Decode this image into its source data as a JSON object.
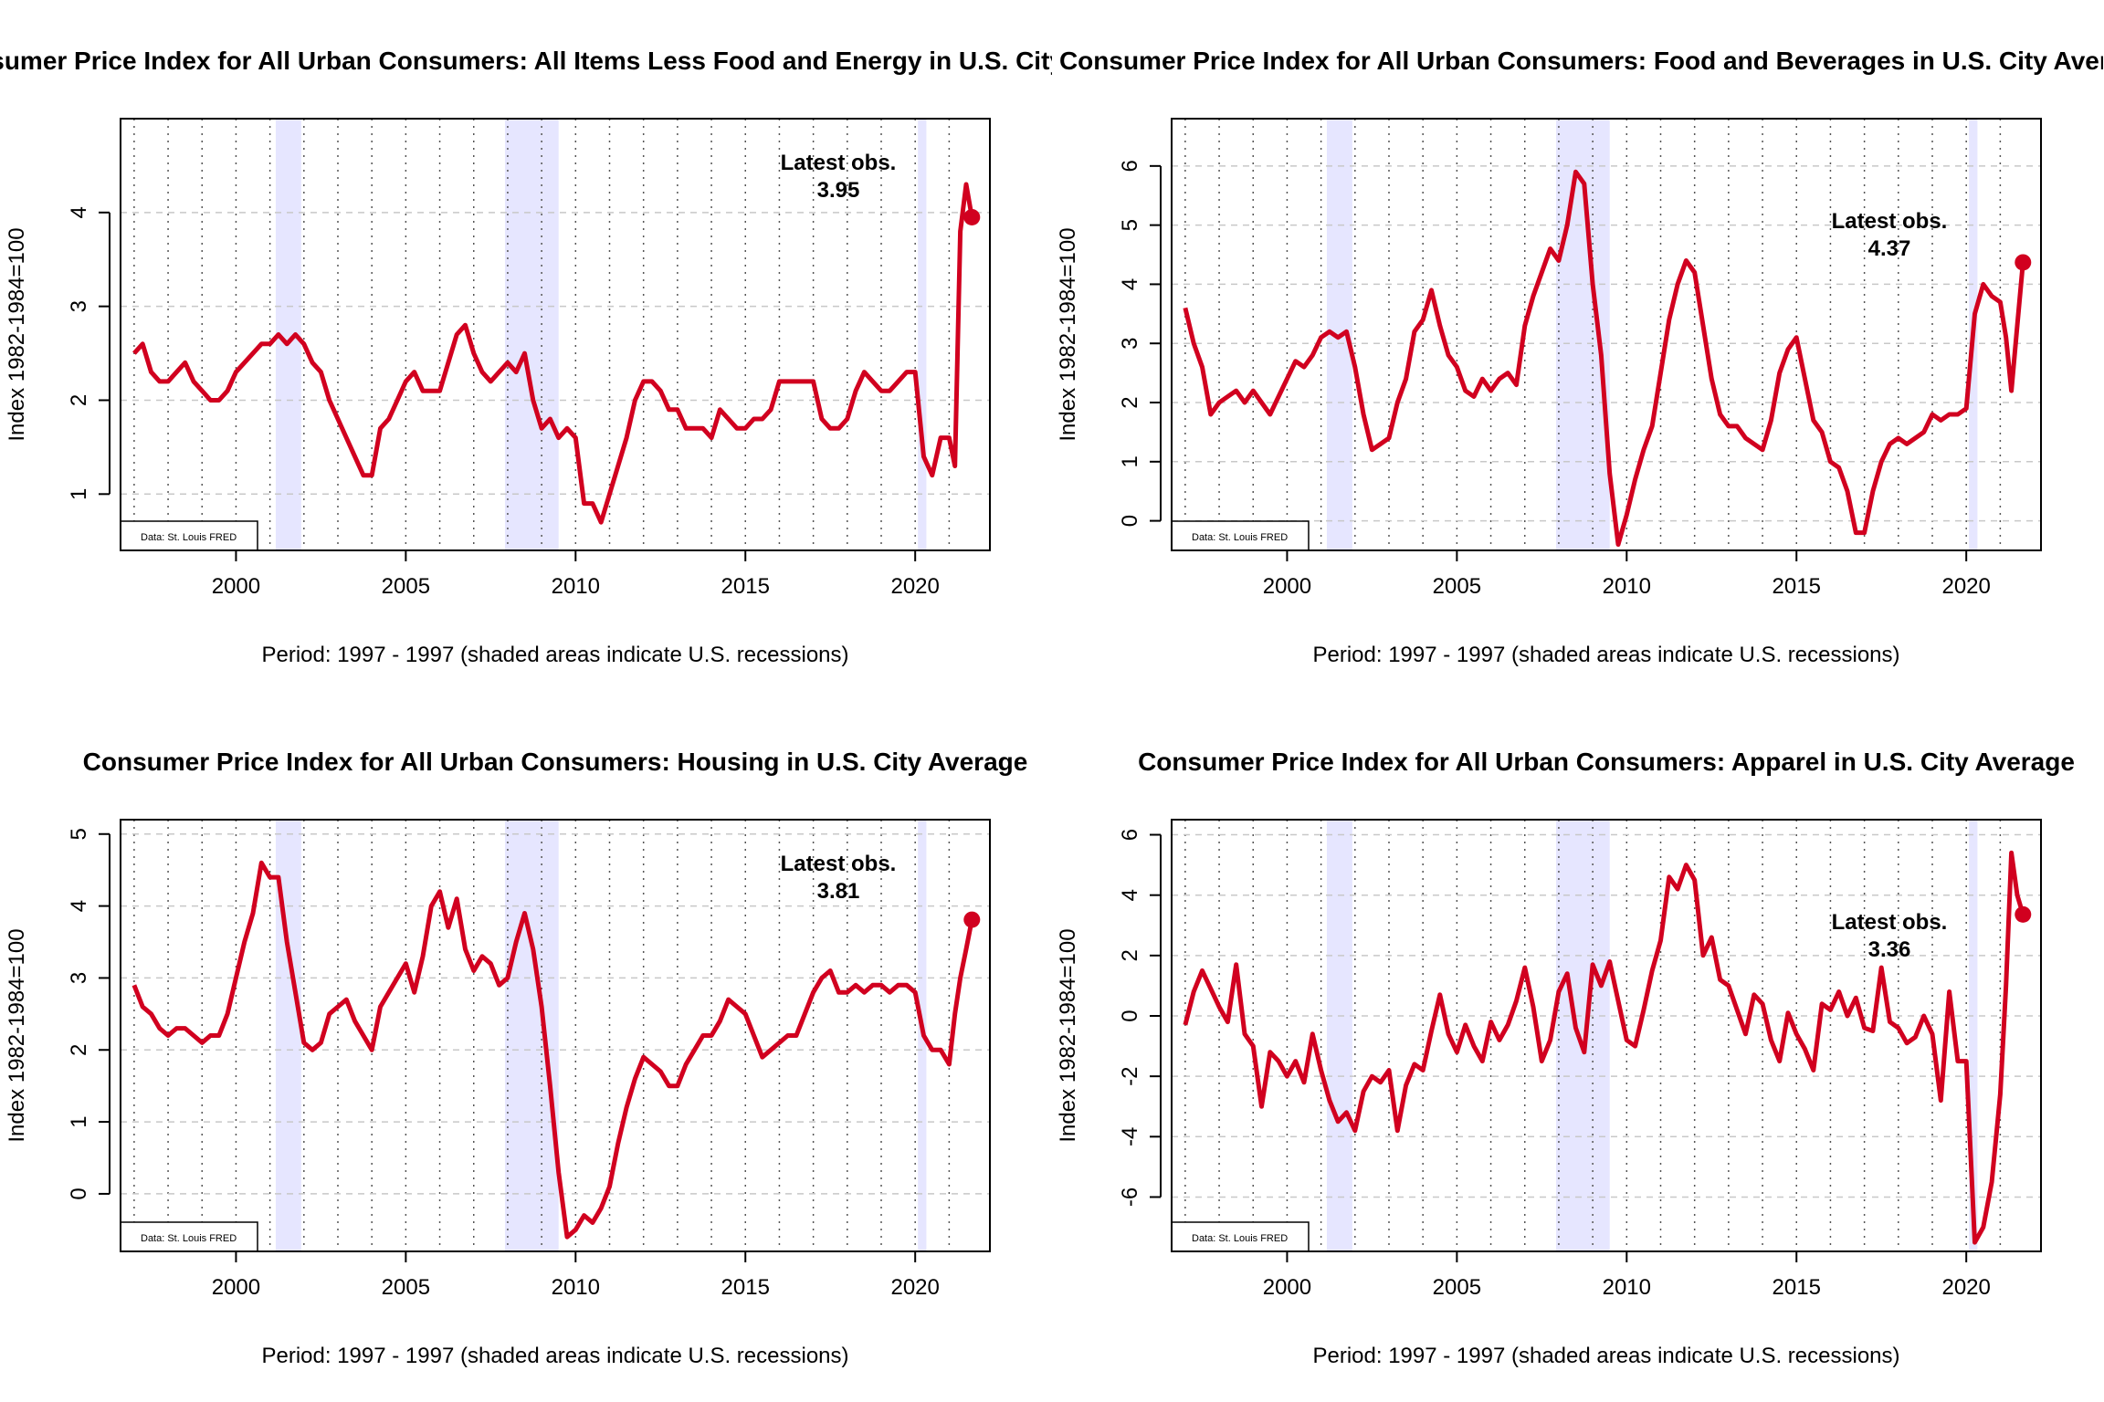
{
  "shared": {
    "ylabel": "Index 1982-1984=100",
    "xlabel": "Period: 1997 - 1997 (shaded areas indicate U.S. recessions)",
    "latest_label": "Latest obs.",
    "source_note": "Data: St. Louis FRED",
    "line_color": "#d1001f",
    "recession_color": "#e6e6ff",
    "x_ticks": [
      "2000",
      "2005",
      "2010",
      "2015",
      "2020"
    ],
    "xlim": [
      1996.6,
      2022.2
    ],
    "recessions": [
      [
        2001.17,
        2001.92
      ],
      [
        2007.92,
        2009.5
      ],
      [
        2020.08,
        2020.33
      ]
    ]
  },
  "chart_data": [
    {
      "type": "line",
      "title": "Consumer Price Index for All Urban Consumers: All Items Less Food and Energy in U.S. City Average",
      "ylim": [
        0.4,
        5.0
      ],
      "y_ticks": [
        "1",
        "2",
        "3",
        "4"
      ],
      "latest_value": "3.95",
      "series": [
        {
          "x": [
            1997.0,
            1997.25,
            1997.5,
            1997.75,
            1998.0,
            1998.25,
            1998.5,
            1998.75,
            1999.0,
            1999.25,
            1999.5,
            1999.75,
            2000.0,
            2000.25,
            2000.5,
            2000.75,
            2001.0,
            2001.25,
            2001.5,
            2001.75,
            2002.0,
            2002.25,
            2002.5,
            2002.75,
            2003.0,
            2003.25,
            2003.5,
            2003.75,
            2004.0,
            2004.25,
            2004.5,
            2004.75,
            2005.0,
            2005.25,
            2005.5,
            2005.75,
            2006.0,
            2006.25,
            2006.5,
            2006.75,
            2007.0,
            2007.25,
            2007.5,
            2007.75,
            2008.0,
            2008.25,
            2008.5,
            2008.75,
            2009.0,
            2009.25,
            2009.5,
            2009.75,
            2010.0,
            2010.25,
            2010.5,
            2010.75,
            2011.0,
            2011.25,
            2011.5,
            2011.75,
            2012.0,
            2012.25,
            2012.5,
            2012.75,
            2013.0,
            2013.25,
            2013.5,
            2013.75,
            2014.0,
            2014.25,
            2014.5,
            2014.75,
            2015.0,
            2015.25,
            2015.5,
            2015.75,
            2016.0,
            2016.25,
            2016.5,
            2016.75,
            2017.0,
            2017.25,
            2017.5,
            2017.75,
            2018.0,
            2018.25,
            2018.5,
            2018.75,
            2019.0,
            2019.25,
            2019.5,
            2019.75,
            2020.0,
            2020.25,
            2020.5,
            2020.75,
            2021.0,
            2021.17,
            2021.33,
            2021.5,
            2021.67
          ],
          "y": [
            2.5,
            2.6,
            2.3,
            2.2,
            2.2,
            2.3,
            2.4,
            2.2,
            2.1,
            2.0,
            2.0,
            2.1,
            2.3,
            2.4,
            2.5,
            2.6,
            2.6,
            2.7,
            2.6,
            2.7,
            2.6,
            2.4,
            2.3,
            2.0,
            1.8,
            1.6,
            1.4,
            1.2,
            1.2,
            1.7,
            1.8,
            2.0,
            2.2,
            2.3,
            2.1,
            2.1,
            2.1,
            2.4,
            2.7,
            2.8,
            2.5,
            2.3,
            2.2,
            2.3,
            2.4,
            2.3,
            2.5,
            2.0,
            1.7,
            1.8,
            1.6,
            1.7,
            1.6,
            0.9,
            0.9,
            0.7,
            1.0,
            1.3,
            1.6,
            2.0,
            2.2,
            2.2,
            2.1,
            1.9,
            1.9,
            1.7,
            1.7,
            1.7,
            1.6,
            1.9,
            1.8,
            1.7,
            1.7,
            1.8,
            1.8,
            1.9,
            2.2,
            2.2,
            2.2,
            2.2,
            2.2,
            1.8,
            1.7,
            1.7,
            1.8,
            2.1,
            2.3,
            2.2,
            2.1,
            2.1,
            2.2,
            2.3,
            2.3,
            1.4,
            1.2,
            1.6,
            1.6,
            1.3,
            3.8,
            4.3,
            3.95
          ]
        }
      ]
    },
    {
      "type": "line",
      "title": "Consumer Price Index for All Urban Consumers: Food and Beverages in U.S. City Average",
      "ylim": [
        -0.5,
        6.8
      ],
      "y_ticks": [
        "0",
        "1",
        "2",
        "3",
        "4",
        "5",
        "6"
      ],
      "latest_value": "4.37",
      "series": [
        {
          "x": [
            1997.0,
            1997.25,
            1997.5,
            1997.75,
            1998.0,
            1998.25,
            1998.5,
            1998.75,
            1999.0,
            1999.25,
            1999.5,
            1999.75,
            2000.0,
            2000.25,
            2000.5,
            2000.75,
            2001.0,
            2001.25,
            2001.5,
            2001.75,
            2002.0,
            2002.25,
            2002.5,
            2002.75,
            2003.0,
            2003.25,
            2003.5,
            2003.75,
            2004.0,
            2004.25,
            2004.5,
            2004.75,
            2005.0,
            2005.25,
            2005.5,
            2005.75,
            2006.0,
            2006.25,
            2006.5,
            2006.75,
            2007.0,
            2007.25,
            2007.5,
            2007.75,
            2008.0,
            2008.25,
            2008.5,
            2008.75,
            2009.0,
            2009.25,
            2009.5,
            2009.75,
            2010.0,
            2010.25,
            2010.5,
            2010.75,
            2011.0,
            2011.25,
            2011.5,
            2011.75,
            2012.0,
            2012.25,
            2012.5,
            2012.75,
            2013.0,
            2013.25,
            2013.5,
            2013.75,
            2014.0,
            2014.25,
            2014.5,
            2014.75,
            2015.0,
            2015.25,
            2015.5,
            2015.75,
            2016.0,
            2016.25,
            2016.5,
            2016.75,
            2017.0,
            2017.25,
            2017.5,
            2017.75,
            2018.0,
            2018.25,
            2018.5,
            2018.75,
            2019.0,
            2019.25,
            2019.5,
            2019.75,
            2020.0,
            2020.25,
            2020.5,
            2020.75,
            2021.0,
            2021.17,
            2021.33,
            2021.5,
            2021.67
          ],
          "y": [
            3.6,
            3.0,
            2.6,
            1.8,
            2.0,
            2.1,
            2.2,
            2.0,
            2.2,
            2.0,
            1.8,
            2.1,
            2.4,
            2.7,
            2.6,
            2.8,
            3.1,
            3.2,
            3.1,
            3.2,
            2.6,
            1.8,
            1.2,
            1.3,
            1.4,
            2.0,
            2.4,
            3.2,
            3.4,
            3.9,
            3.3,
            2.8,
            2.6,
            2.2,
            2.1,
            2.4,
            2.2,
            2.4,
            2.5,
            2.3,
            3.3,
            3.8,
            4.2,
            4.6,
            4.4,
            5.0,
            5.9,
            5.7,
            4.0,
            2.8,
            0.8,
            -0.4,
            0.1,
            0.7,
            1.2,
            1.6,
            2.5,
            3.4,
            4.0,
            4.4,
            4.2,
            3.3,
            2.4,
            1.8,
            1.6,
            1.6,
            1.4,
            1.3,
            1.2,
            1.7,
            2.5,
            2.9,
            3.1,
            2.4,
            1.7,
            1.5,
            1.0,
            0.9,
            0.5,
            -0.2,
            -0.2,
            0.5,
            1.0,
            1.3,
            1.4,
            1.3,
            1.4,
            1.5,
            1.8,
            1.7,
            1.8,
            1.8,
            1.9,
            3.5,
            4.0,
            3.8,
            3.7,
            3.1,
            2.2,
            3.3,
            4.37
          ]
        }
      ]
    },
    {
      "type": "line",
      "title": "Consumer Price Index for All Urban Consumers: Housing in U.S. City Average",
      "ylim": [
        -0.8,
        5.2
      ],
      "y_ticks": [
        "0",
        "1",
        "2",
        "3",
        "4",
        "5"
      ],
      "latest_value": "3.81",
      "series": [
        {
          "x": [
            1997.0,
            1997.25,
            1997.5,
            1997.75,
            1998.0,
            1998.25,
            1998.5,
            1998.75,
            1999.0,
            1999.25,
            1999.5,
            1999.75,
            2000.0,
            2000.25,
            2000.5,
            2000.75,
            2001.0,
            2001.25,
            2001.5,
            2001.75,
            2002.0,
            2002.25,
            2002.5,
            2002.75,
            2003.0,
            2003.25,
            2003.5,
            2003.75,
            2004.0,
            2004.25,
            2004.5,
            2004.75,
            2005.0,
            2005.25,
            2005.5,
            2005.75,
            2006.0,
            2006.25,
            2006.5,
            2006.75,
            2007.0,
            2007.25,
            2007.5,
            2007.75,
            2008.0,
            2008.25,
            2008.5,
            2008.75,
            2009.0,
            2009.25,
            2009.5,
            2009.75,
            2010.0,
            2010.25,
            2010.5,
            2010.75,
            2011.0,
            2011.25,
            2011.5,
            2011.75,
            2012.0,
            2012.25,
            2012.5,
            2012.75,
            2013.0,
            2013.25,
            2013.5,
            2013.75,
            2014.0,
            2014.25,
            2014.5,
            2014.75,
            2015.0,
            2015.25,
            2015.5,
            2015.75,
            2016.0,
            2016.25,
            2016.5,
            2016.75,
            2017.0,
            2017.25,
            2017.5,
            2017.75,
            2018.0,
            2018.25,
            2018.5,
            2018.75,
            2019.0,
            2019.25,
            2019.5,
            2019.75,
            2020.0,
            2020.25,
            2020.5,
            2020.75,
            2021.0,
            2021.17,
            2021.33,
            2021.5,
            2021.67
          ],
          "y": [
            2.9,
            2.6,
            2.5,
            2.3,
            2.2,
            2.3,
            2.3,
            2.2,
            2.1,
            2.2,
            2.2,
            2.5,
            3.0,
            3.5,
            3.9,
            4.6,
            4.4,
            4.4,
            3.5,
            2.8,
            2.1,
            2.0,
            2.1,
            2.5,
            2.6,
            2.7,
            2.4,
            2.2,
            2.0,
            2.6,
            2.8,
            3.0,
            3.2,
            2.8,
            3.3,
            4.0,
            4.2,
            3.7,
            4.1,
            3.4,
            3.1,
            3.3,
            3.2,
            2.9,
            3.0,
            3.5,
            3.9,
            3.4,
            2.6,
            1.5,
            0.3,
            -0.6,
            -0.5,
            -0.3,
            -0.4,
            -0.2,
            0.1,
            0.7,
            1.2,
            1.6,
            1.9,
            1.8,
            1.7,
            1.5,
            1.5,
            1.8,
            2.0,
            2.2,
            2.2,
            2.4,
            2.7,
            2.6,
            2.5,
            2.2,
            1.9,
            2.0,
            2.1,
            2.2,
            2.2,
            2.5,
            2.8,
            3.0,
            3.1,
            2.8,
            2.8,
            2.9,
            2.8,
            2.9,
            2.9,
            2.8,
            2.9,
            2.9,
            2.8,
            2.2,
            2.0,
            2.0,
            1.8,
            2.5,
            3.0,
            3.4,
            3.81
          ]
        }
      ]
    },
    {
      "type": "line",
      "title": "Consumer Price Index for All Urban Consumers: Apparel in U.S. City Average",
      "ylim": [
        -7.8,
        6.5
      ],
      "y_ticks": [
        "-6",
        "-4",
        "-2",
        "0",
        "2",
        "4",
        "6"
      ],
      "latest_value": "3.36",
      "series": [
        {
          "x": [
            1997.0,
            1997.25,
            1997.5,
            1997.75,
            1998.0,
            1998.25,
            1998.5,
            1998.75,
            1999.0,
            1999.25,
            1999.5,
            1999.75,
            2000.0,
            2000.25,
            2000.5,
            2000.75,
            2001.0,
            2001.25,
            2001.5,
            2001.75,
            2002.0,
            2002.25,
            2002.5,
            2002.75,
            2003.0,
            2003.25,
            2003.5,
            2003.75,
            2004.0,
            2004.25,
            2004.5,
            2004.75,
            2005.0,
            2005.25,
            2005.5,
            2005.75,
            2006.0,
            2006.25,
            2006.5,
            2006.75,
            2007.0,
            2007.25,
            2007.5,
            2007.75,
            2008.0,
            2008.25,
            2008.5,
            2008.75,
            2009.0,
            2009.25,
            2009.5,
            2009.75,
            2010.0,
            2010.25,
            2010.5,
            2010.75,
            2011.0,
            2011.25,
            2011.5,
            2011.75,
            2012.0,
            2012.25,
            2012.5,
            2012.75,
            2013.0,
            2013.25,
            2013.5,
            2013.75,
            2014.0,
            2014.25,
            2014.5,
            2014.75,
            2015.0,
            2015.25,
            2015.5,
            2015.75,
            2016.0,
            2016.25,
            2016.5,
            2016.75,
            2017.0,
            2017.25,
            2017.5,
            2017.75,
            2018.0,
            2018.25,
            2018.5,
            2018.75,
            2019.0,
            2019.25,
            2019.5,
            2019.75,
            2020.0,
            2020.25,
            2020.5,
            2020.75,
            2021.0,
            2021.17,
            2021.33,
            2021.5,
            2021.67
          ],
          "y": [
            -0.3,
            0.8,
            1.5,
            0.9,
            0.3,
            -0.2,
            1.7,
            -0.6,
            -1.0,
            -3.0,
            -1.2,
            -1.5,
            -2.0,
            -1.5,
            -2.2,
            -0.6,
            -1.8,
            -2.8,
            -3.5,
            -3.2,
            -3.8,
            -2.5,
            -2.0,
            -2.2,
            -1.8,
            -3.8,
            -2.3,
            -1.6,
            -1.8,
            -0.5,
            0.7,
            -0.6,
            -1.2,
            -0.3,
            -1.0,
            -1.5,
            -0.2,
            -0.8,
            -0.3,
            0.5,
            1.6,
            0.3,
            -1.5,
            -0.8,
            0.8,
            1.4,
            -0.4,
            -1.2,
            1.7,
            1.0,
            1.8,
            0.5,
            -0.8,
            -1.0,
            0.2,
            1.5,
            2.5,
            4.6,
            4.2,
            5.0,
            4.5,
            2.0,
            2.6,
            1.2,
            1.0,
            0.2,
            -0.6,
            0.7,
            0.4,
            -0.8,
            -1.5,
            0.1,
            -0.6,
            -1.1,
            -1.8,
            0.4,
            0.2,
            0.8,
            0.0,
            0.6,
            -0.4,
            -0.5,
            1.6,
            -0.2,
            -0.4,
            -0.9,
            -0.7,
            0.0,
            -0.6,
            -2.8,
            0.8,
            -1.5,
            -1.5,
            -7.5,
            -7.0,
            -5.5,
            -2.6,
            1.0,
            5.4,
            4.0,
            3.36
          ]
        }
      ]
    }
  ]
}
